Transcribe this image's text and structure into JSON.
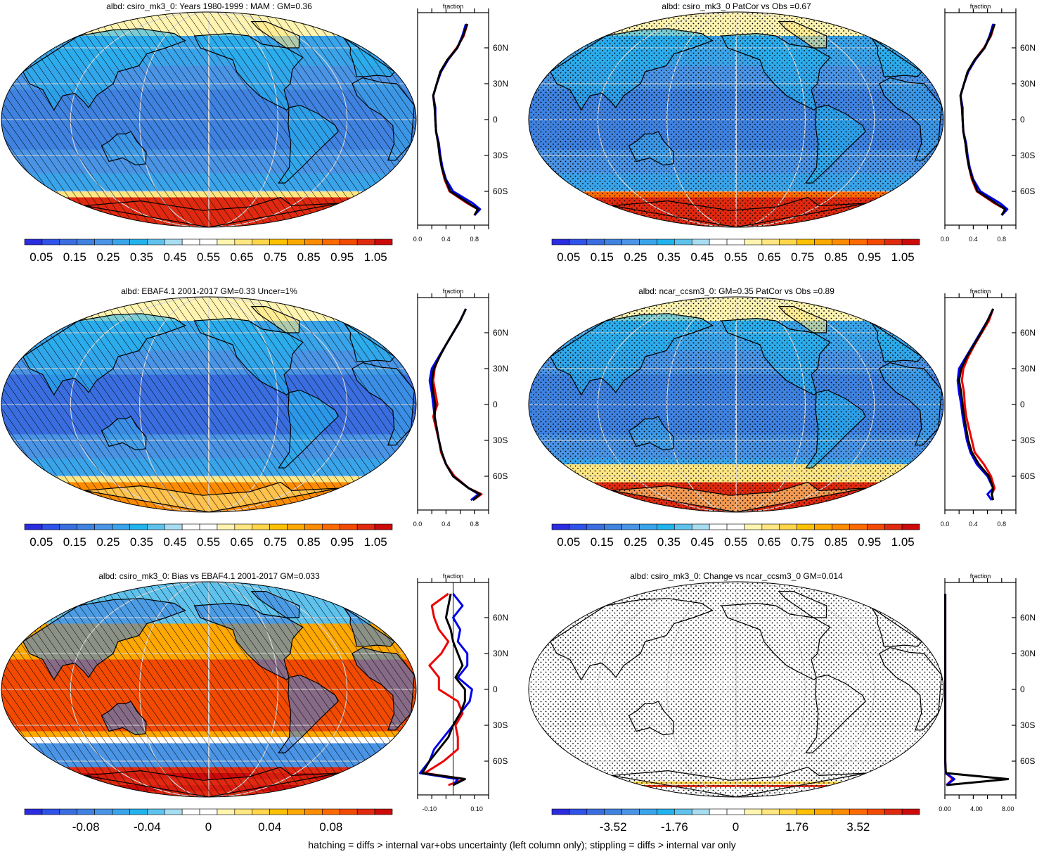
{
  "colors": {
    "scale": [
      "#2b2be0",
      "#2f52e8",
      "#3a6ee0",
      "#3f82e0",
      "#4a94e6",
      "#3aa4ea",
      "#22b2ec",
      "#5ec2ec",
      "#a8dcf0",
      "#ffffff",
      "#ffffff",
      "#fff4b0",
      "#ffe680",
      "#ffd54a",
      "#ffc000",
      "#ffa800",
      "#ff8c00",
      "#ff6a00",
      "#f24a00",
      "#e02a10",
      "#cc0a0a"
    ],
    "map_land_line": "#000000",
    "graticule": "#d8d8d8",
    "profile_red": "#ee0000",
    "profile_blue": "#0000ee",
    "profile_black": "#000000"
  },
  "footer": "hatching = diffs > internal var+obs uncertainty (left column only); stippling = diffs > internal var only",
  "panels": [
    {
      "id": "p1",
      "title": "albd: csiro_mk3_0: Years 1980-1999 : MAM : GM=0.36",
      "pattern": "hatch",
      "field": "mean",
      "colorbar_labels": [
        "0.05",
        "0.15",
        "0.25",
        "0.35",
        "0.45",
        "0.55",
        "0.65",
        "0.75",
        "0.85",
        "0.95",
        "1.05"
      ],
      "profile": {
        "title": "fraction",
        "xticks": [
          "0.0",
          "0.4",
          "0.8"
        ],
        "yticks": [
          "60N",
          "30N",
          "0",
          "30S",
          "60S"
        ]
      }
    },
    {
      "id": "p2",
      "title": "albd: csiro_mk3_0 PatCor vs Obs =0.67",
      "pattern": "stipple",
      "field": "mean",
      "colorbar_labels": [
        "0.05",
        "0.15",
        "0.25",
        "0.35",
        "0.45",
        "0.55",
        "0.65",
        "0.75",
        "0.85",
        "0.95",
        "1.05"
      ],
      "profile": {
        "title": "fraction",
        "xticks": [
          "0.0",
          "0.4",
          "0.8"
        ],
        "yticks": [
          "60N",
          "30N",
          "0",
          "30S",
          "60S"
        ]
      }
    },
    {
      "id": "p3",
      "title": "albd: EBAF4.1 2001-2017 GM=0.33 Uncer=1%",
      "pattern": "hatch",
      "field": "mean",
      "colorbar_labels": [
        "0.05",
        "0.15",
        "0.25",
        "0.35",
        "0.45",
        "0.55",
        "0.65",
        "0.75",
        "0.85",
        "0.95",
        "1.05"
      ],
      "profile": {
        "title": "fraction",
        "xticks": [
          "0.0",
          "0.4",
          "0.8"
        ],
        "yticks": [
          "60N",
          "30N",
          "0",
          "30S",
          "60S"
        ]
      }
    },
    {
      "id": "p4",
      "title": "albd: ncar_ccsm3_0: GM=0.35 PatCor vs Obs =0.89",
      "pattern": "stipple",
      "field": "mean",
      "colorbar_labels": [
        "0.05",
        "0.15",
        "0.25",
        "0.35",
        "0.45",
        "0.55",
        "0.65",
        "0.75",
        "0.85",
        "0.95",
        "1.05"
      ],
      "profile": {
        "title": "fraction",
        "xticks": [
          "0.0",
          "0.4",
          "0.8"
        ],
        "yticks": [
          "60N",
          "30N",
          "0",
          "30S",
          "60S"
        ]
      }
    },
    {
      "id": "p5",
      "title": "albd: csiro_mk3_0: Bias vs EBAF4.1 2001-2017 GM=0.033",
      "pattern": "hatch",
      "field": "bias",
      "colorbar_labels": [
        "-0.08",
        "-0.04",
        "0",
        "0.04",
        "0.08"
      ],
      "profile": {
        "title": "fraction",
        "xticks": [
          "-0.10",
          "0.10"
        ],
        "yticks": [
          "60N",
          "30N",
          "0",
          "30S",
          "60S"
        ]
      }
    },
    {
      "id": "p6",
      "title": "albd: csiro_mk3_0: Change vs ncar_ccsm3_0 GM=0.014",
      "pattern": "stipple",
      "field": "change",
      "colorbar_labels": [
        "-3.52",
        "-1.76",
        "0",
        "1.76",
        "3.52"
      ],
      "profile": {
        "title": "fraction",
        "xticks": [
          "0.00",
          "4.00",
          "8.00"
        ],
        "yticks": [
          "60N",
          "30N",
          "0",
          "30S",
          "60S"
        ]
      }
    }
  ],
  "chart_data": [
    {
      "type": "heatmap",
      "title": "albd: csiro_mk3_0: Years 1980-1999 : MAM : GM=0.36",
      "colorbar": {
        "min": 0.0,
        "max": 1.1,
        "labels": [
          0.05,
          0.15,
          0.25,
          0.35,
          0.45,
          0.55,
          0.65,
          0.75,
          0.85,
          0.95,
          1.05
        ]
      },
      "zonal_profile": {
        "x_label": "fraction",
        "xlim": [
          0,
          1.0
        ],
        "ylim": [
          -90,
          90
        ],
        "lat": [
          80,
          70,
          60,
          50,
          40,
          30,
          20,
          10,
          0,
          -10,
          -20,
          -30,
          -40,
          -50,
          -60,
          -70,
          -75,
          -80
        ],
        "series": [
          {
            "values": [
              0.7,
              0.65,
              0.55,
              0.42,
              0.32,
              0.27,
              0.22,
              0.24,
              0.25,
              0.26,
              0.29,
              0.31,
              0.34,
              0.38,
              0.45,
              0.7,
              0.85,
              0.8
            ]
          },
          {
            "values": [
              0.68,
              0.63,
              0.56,
              0.43,
              0.33,
              0.27,
              0.22,
              0.25,
              0.25,
              0.26,
              0.3,
              0.32,
              0.35,
              0.4,
              0.5,
              0.78,
              0.88,
              0.8
            ]
          },
          {
            "values": [
              0.7,
              0.64,
              0.56,
              0.42,
              0.32,
              0.27,
              0.22,
              0.24,
              0.25,
              0.26,
              0.29,
              0.31,
              0.34,
              0.39,
              0.46,
              0.72,
              0.85,
              0.8
            ]
          }
        ]
      }
    },
    {
      "type": "heatmap",
      "title": "albd: csiro_mk3_0 PatCor vs Obs =0.67",
      "colorbar": {
        "min": 0.0,
        "max": 1.1,
        "labels": [
          0.05,
          0.15,
          0.25,
          0.35,
          0.45,
          0.55,
          0.65,
          0.75,
          0.85,
          0.95,
          1.05
        ]
      },
      "zonal_profile": {
        "x_label": "fraction",
        "xlim": [
          0,
          1.0
        ],
        "ylim": [
          -90,
          90
        ],
        "lat": [
          80,
          70,
          60,
          50,
          40,
          30,
          20,
          10,
          0,
          -10,
          -20,
          -30,
          -40,
          -50,
          -60,
          -70,
          -75,
          -80
        ],
        "series": [
          {
            "values": [
              0.7,
              0.65,
              0.55,
              0.42,
              0.32,
              0.27,
              0.22,
              0.24,
              0.25,
              0.26,
              0.29,
              0.31,
              0.34,
              0.38,
              0.45,
              0.7,
              0.85,
              0.8
            ]
          },
          {
            "values": [
              0.68,
              0.63,
              0.56,
              0.43,
              0.33,
              0.27,
              0.22,
              0.25,
              0.25,
              0.26,
              0.3,
              0.32,
              0.35,
              0.4,
              0.5,
              0.78,
              0.88,
              0.8
            ]
          },
          {
            "values": [
              0.7,
              0.64,
              0.56,
              0.42,
              0.32,
              0.27,
              0.22,
              0.24,
              0.25,
              0.26,
              0.29,
              0.31,
              0.34,
              0.39,
              0.46,
              0.72,
              0.85,
              0.8
            ]
          }
        ]
      }
    },
    {
      "type": "heatmap",
      "title": "albd: EBAF4.1 2001-2017 GM=0.33 Uncer=1%",
      "colorbar": {
        "min": 0.0,
        "max": 1.1,
        "labels": [
          0.05,
          0.15,
          0.25,
          0.35,
          0.45,
          0.55,
          0.65,
          0.75,
          0.85,
          0.95,
          1.05
        ]
      },
      "zonal_profile": {
        "x_label": "fraction",
        "xlim": [
          0,
          1.0
        ],
        "ylim": [
          -90,
          90
        ],
        "lat": [
          80,
          70,
          60,
          50,
          40,
          30,
          20,
          10,
          0,
          -10,
          -20,
          -30,
          -40,
          -50,
          -60,
          -70,
          -75,
          -80
        ],
        "series": [
          {
            "values": [
              0.68,
              0.6,
              0.5,
              0.4,
              0.3,
              0.24,
              0.22,
              0.25,
              0.28,
              0.22,
              0.26,
              0.3,
              0.33,
              0.4,
              0.52,
              0.72,
              0.9,
              0.78
            ]
          },
          {
            "values": [
              0.68,
              0.6,
              0.5,
              0.4,
              0.3,
              0.2,
              0.17,
              0.2,
              0.22,
              0.24,
              0.27,
              0.3,
              0.34,
              0.4,
              0.5,
              0.72,
              0.86,
              0.75
            ]
          },
          {
            "values": [
              0.68,
              0.6,
              0.5,
              0.4,
              0.31,
              0.23,
              0.2,
              0.22,
              0.25,
              0.24,
              0.27,
              0.3,
              0.34,
              0.4,
              0.5,
              0.72,
              0.88,
              0.78
            ]
          }
        ]
      }
    },
    {
      "type": "heatmap",
      "title": "albd: ncar_ccsm3_0: GM=0.35 PatCor vs Obs =0.89",
      "colorbar": {
        "min": 0.0,
        "max": 1.1,
        "labels": [
          0.05,
          0.15,
          0.25,
          0.35,
          0.45,
          0.55,
          0.65,
          0.75,
          0.85,
          0.95,
          1.05
        ]
      },
      "zonal_profile": {
        "x_label": "fraction",
        "xlim": [
          0,
          1.0
        ],
        "ylim": [
          -90,
          90
        ],
        "lat": [
          80,
          70,
          60,
          50,
          40,
          30,
          20,
          10,
          0,
          -10,
          -20,
          -30,
          -40,
          -50,
          -60,
          -70,
          -75,
          -80
        ],
        "series": [
          {
            "values": [
              0.68,
              0.62,
              0.52,
              0.42,
              0.33,
              0.26,
              0.24,
              0.27,
              0.28,
              0.3,
              0.34,
              0.38,
              0.42,
              0.55,
              0.65,
              0.7,
              0.66,
              0.68
            ]
          },
          {
            "values": [
              0.68,
              0.6,
              0.5,
              0.4,
              0.3,
              0.2,
              0.18,
              0.2,
              0.23,
              0.25,
              0.28,
              0.31,
              0.36,
              0.45,
              0.6,
              0.68,
              0.6,
              0.66
            ]
          },
          {
            "values": [
              0.68,
              0.6,
              0.51,
              0.41,
              0.31,
              0.23,
              0.2,
              0.23,
              0.25,
              0.27,
              0.3,
              0.33,
              0.38,
              0.48,
              0.62,
              0.68,
              0.66,
              0.68
            ]
          }
        ]
      }
    },
    {
      "type": "heatmap",
      "title": "albd: csiro_mk3_0: Bias vs EBAF4.1 2001-2017 GM=0.033",
      "colorbar": {
        "min": -0.12,
        "max": 0.12,
        "labels": [
          -0.08,
          -0.04,
          0,
          0.04,
          0.08
        ]
      },
      "zonal_profile": {
        "x_label": "fraction",
        "xlim": [
          -0.15,
          0.15
        ],
        "ylim": [
          -90,
          90
        ],
        "lat": [
          80,
          70,
          60,
          50,
          40,
          30,
          20,
          10,
          0,
          -10,
          -20,
          -30,
          -40,
          -50,
          -60,
          -70,
          -75,
          -80
        ],
        "series": [
          {
            "values": [
              -0.02,
              -0.09,
              -0.08,
              -0.06,
              -0.02,
              -0.05,
              -0.1,
              -0.06,
              -0.06,
              0.02,
              0.04,
              0.01,
              0.02,
              0.02,
              -0.04,
              -0.12,
              0.05,
              -0.02
            ]
          },
          {
            "values": [
              0.0,
              0.04,
              0.0,
              0.03,
              0.02,
              0.06,
              0.06,
              0.02,
              0.08,
              0.07,
              0.03,
              0.0,
              -0.04,
              -0.08,
              -0.1,
              -0.14,
              0.02,
              0.0
            ]
          },
          {
            "values": [
              -0.01,
              -0.02,
              -0.03,
              -0.01,
              0.0,
              0.02,
              0.04,
              0.01,
              0.05,
              0.05,
              0.03,
              0.0,
              -0.02,
              -0.06,
              -0.1,
              -0.13,
              0.05,
              0.0
            ]
          }
        ]
      }
    },
    {
      "type": "heatmap",
      "title": "albd: csiro_mk3_0: Change vs ncar_ccsm3_0 GM=0.014",
      "colorbar": {
        "min": -5.28,
        "max": 5.28,
        "labels": [
          -3.52,
          -1.76,
          0,
          1.76,
          3.52
        ]
      },
      "zonal_profile": {
        "x_label": "fraction",
        "xlim": [
          0,
          9.0
        ],
        "ylim": [
          -90,
          90
        ],
        "lat": [
          80,
          70,
          60,
          50,
          40,
          30,
          20,
          10,
          0,
          -10,
          -20,
          -30,
          -40,
          -50,
          -60,
          -70,
          -75,
          -80
        ],
        "series": [
          {
            "values": [
              0.05,
              0.05,
              0.05,
              0.05,
              0.05,
              0.05,
              0.05,
              0.05,
              0.05,
              0.05,
              0.05,
              0.05,
              0.05,
              0.05,
              0.05,
              0.1,
              1.0,
              0.2
            ]
          },
          {
            "values": [
              0.05,
              0.05,
              0.05,
              0.05,
              0.05,
              0.05,
              0.05,
              0.05,
              0.05,
              0.05,
              0.05,
              0.05,
              0.05,
              0.05,
              0.05,
              0.1,
              1.2,
              0.2
            ]
          },
          {
            "values": [
              0.05,
              0.05,
              0.05,
              0.05,
              0.05,
              0.05,
              0.05,
              0.05,
              0.05,
              0.05,
              0.05,
              0.05,
              0.05,
              0.05,
              0.05,
              0.12,
              8.0,
              0.2
            ]
          }
        ]
      }
    }
  ]
}
